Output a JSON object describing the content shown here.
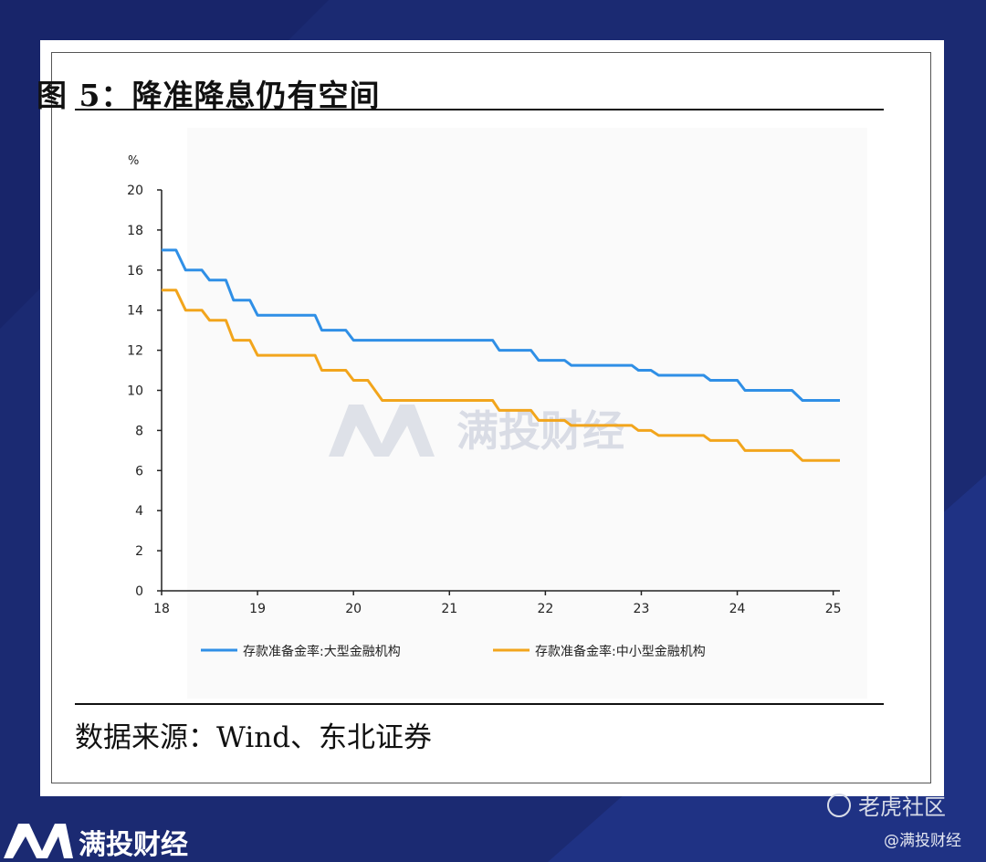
{
  "figure": {
    "title": "图 5：降准降息仍有空间",
    "source": "数据来源：Wind、东北证券"
  },
  "watermark": {
    "center_text": "满投财经",
    "footer_brand": "满投财经",
    "community": "老虎社区",
    "handle": "@满投财经"
  },
  "colors": {
    "background": "#1b2a72",
    "series_large": "#2f8fe6",
    "series_small": "#f2a51c"
  },
  "chart_data": {
    "type": "line",
    "title": "",
    "xlabel": "",
    "ylabel": "%",
    "xlim": [
      18,
      25.07
    ],
    "ylim": [
      0,
      20
    ],
    "x_ticks": [
      "18",
      "19",
      "20",
      "21",
      "22",
      "23",
      "24",
      "25"
    ],
    "y_ticks": [
      "0",
      "2",
      "4",
      "6",
      "8",
      "10",
      "12",
      "14",
      "16",
      "18",
      "20"
    ],
    "grid": false,
    "legend_position": "bottom",
    "series": [
      {
        "name": "存款准备金率:大型金融机构",
        "color": "#2f8fe6",
        "points": [
          [
            18.0,
            17.0
          ],
          [
            18.15,
            17.0
          ],
          [
            18.25,
            16.0
          ],
          [
            18.42,
            16.0
          ],
          [
            18.5,
            15.5
          ],
          [
            18.67,
            15.5
          ],
          [
            18.75,
            14.5
          ],
          [
            18.92,
            14.5
          ],
          [
            19.0,
            13.75
          ],
          [
            19.6,
            13.75
          ],
          [
            19.67,
            13.0
          ],
          [
            19.92,
            13.0
          ],
          [
            20.0,
            12.5
          ],
          [
            21.45,
            12.5
          ],
          [
            21.52,
            12.0
          ],
          [
            21.85,
            12.0
          ],
          [
            21.93,
            11.5
          ],
          [
            22.2,
            11.5
          ],
          [
            22.27,
            11.25
          ],
          [
            22.9,
            11.25
          ],
          [
            22.97,
            11.0
          ],
          [
            23.1,
            11.0
          ],
          [
            23.18,
            10.75
          ],
          [
            23.65,
            10.75
          ],
          [
            23.72,
            10.5
          ],
          [
            24.0,
            10.5
          ],
          [
            24.08,
            10.0
          ],
          [
            24.57,
            10.0
          ],
          [
            24.68,
            9.5
          ],
          [
            25.07,
            9.5
          ]
        ]
      },
      {
        "name": "存款准备金率:中小型金融机构",
        "color": "#f2a51c",
        "points": [
          [
            18.0,
            15.0
          ],
          [
            18.15,
            15.0
          ],
          [
            18.25,
            14.0
          ],
          [
            18.42,
            14.0
          ],
          [
            18.5,
            13.5
          ],
          [
            18.67,
            13.5
          ],
          [
            18.75,
            12.5
          ],
          [
            18.92,
            12.5
          ],
          [
            19.0,
            11.75
          ],
          [
            19.6,
            11.75
          ],
          [
            19.67,
            11.0
          ],
          [
            19.92,
            11.0
          ],
          [
            20.0,
            10.5
          ],
          [
            20.15,
            10.5
          ],
          [
            20.3,
            9.5
          ],
          [
            21.45,
            9.5
          ],
          [
            21.52,
            9.0
          ],
          [
            21.85,
            9.0
          ],
          [
            21.93,
            8.5
          ],
          [
            22.2,
            8.5
          ],
          [
            22.27,
            8.25
          ],
          [
            22.9,
            8.25
          ],
          [
            22.97,
            8.0
          ],
          [
            23.1,
            8.0
          ],
          [
            23.18,
            7.75
          ],
          [
            23.65,
            7.75
          ],
          [
            23.72,
            7.5
          ],
          [
            24.0,
            7.5
          ],
          [
            24.08,
            7.0
          ],
          [
            24.57,
            7.0
          ],
          [
            24.68,
            6.5
          ],
          [
            25.07,
            6.5
          ]
        ]
      }
    ]
  }
}
